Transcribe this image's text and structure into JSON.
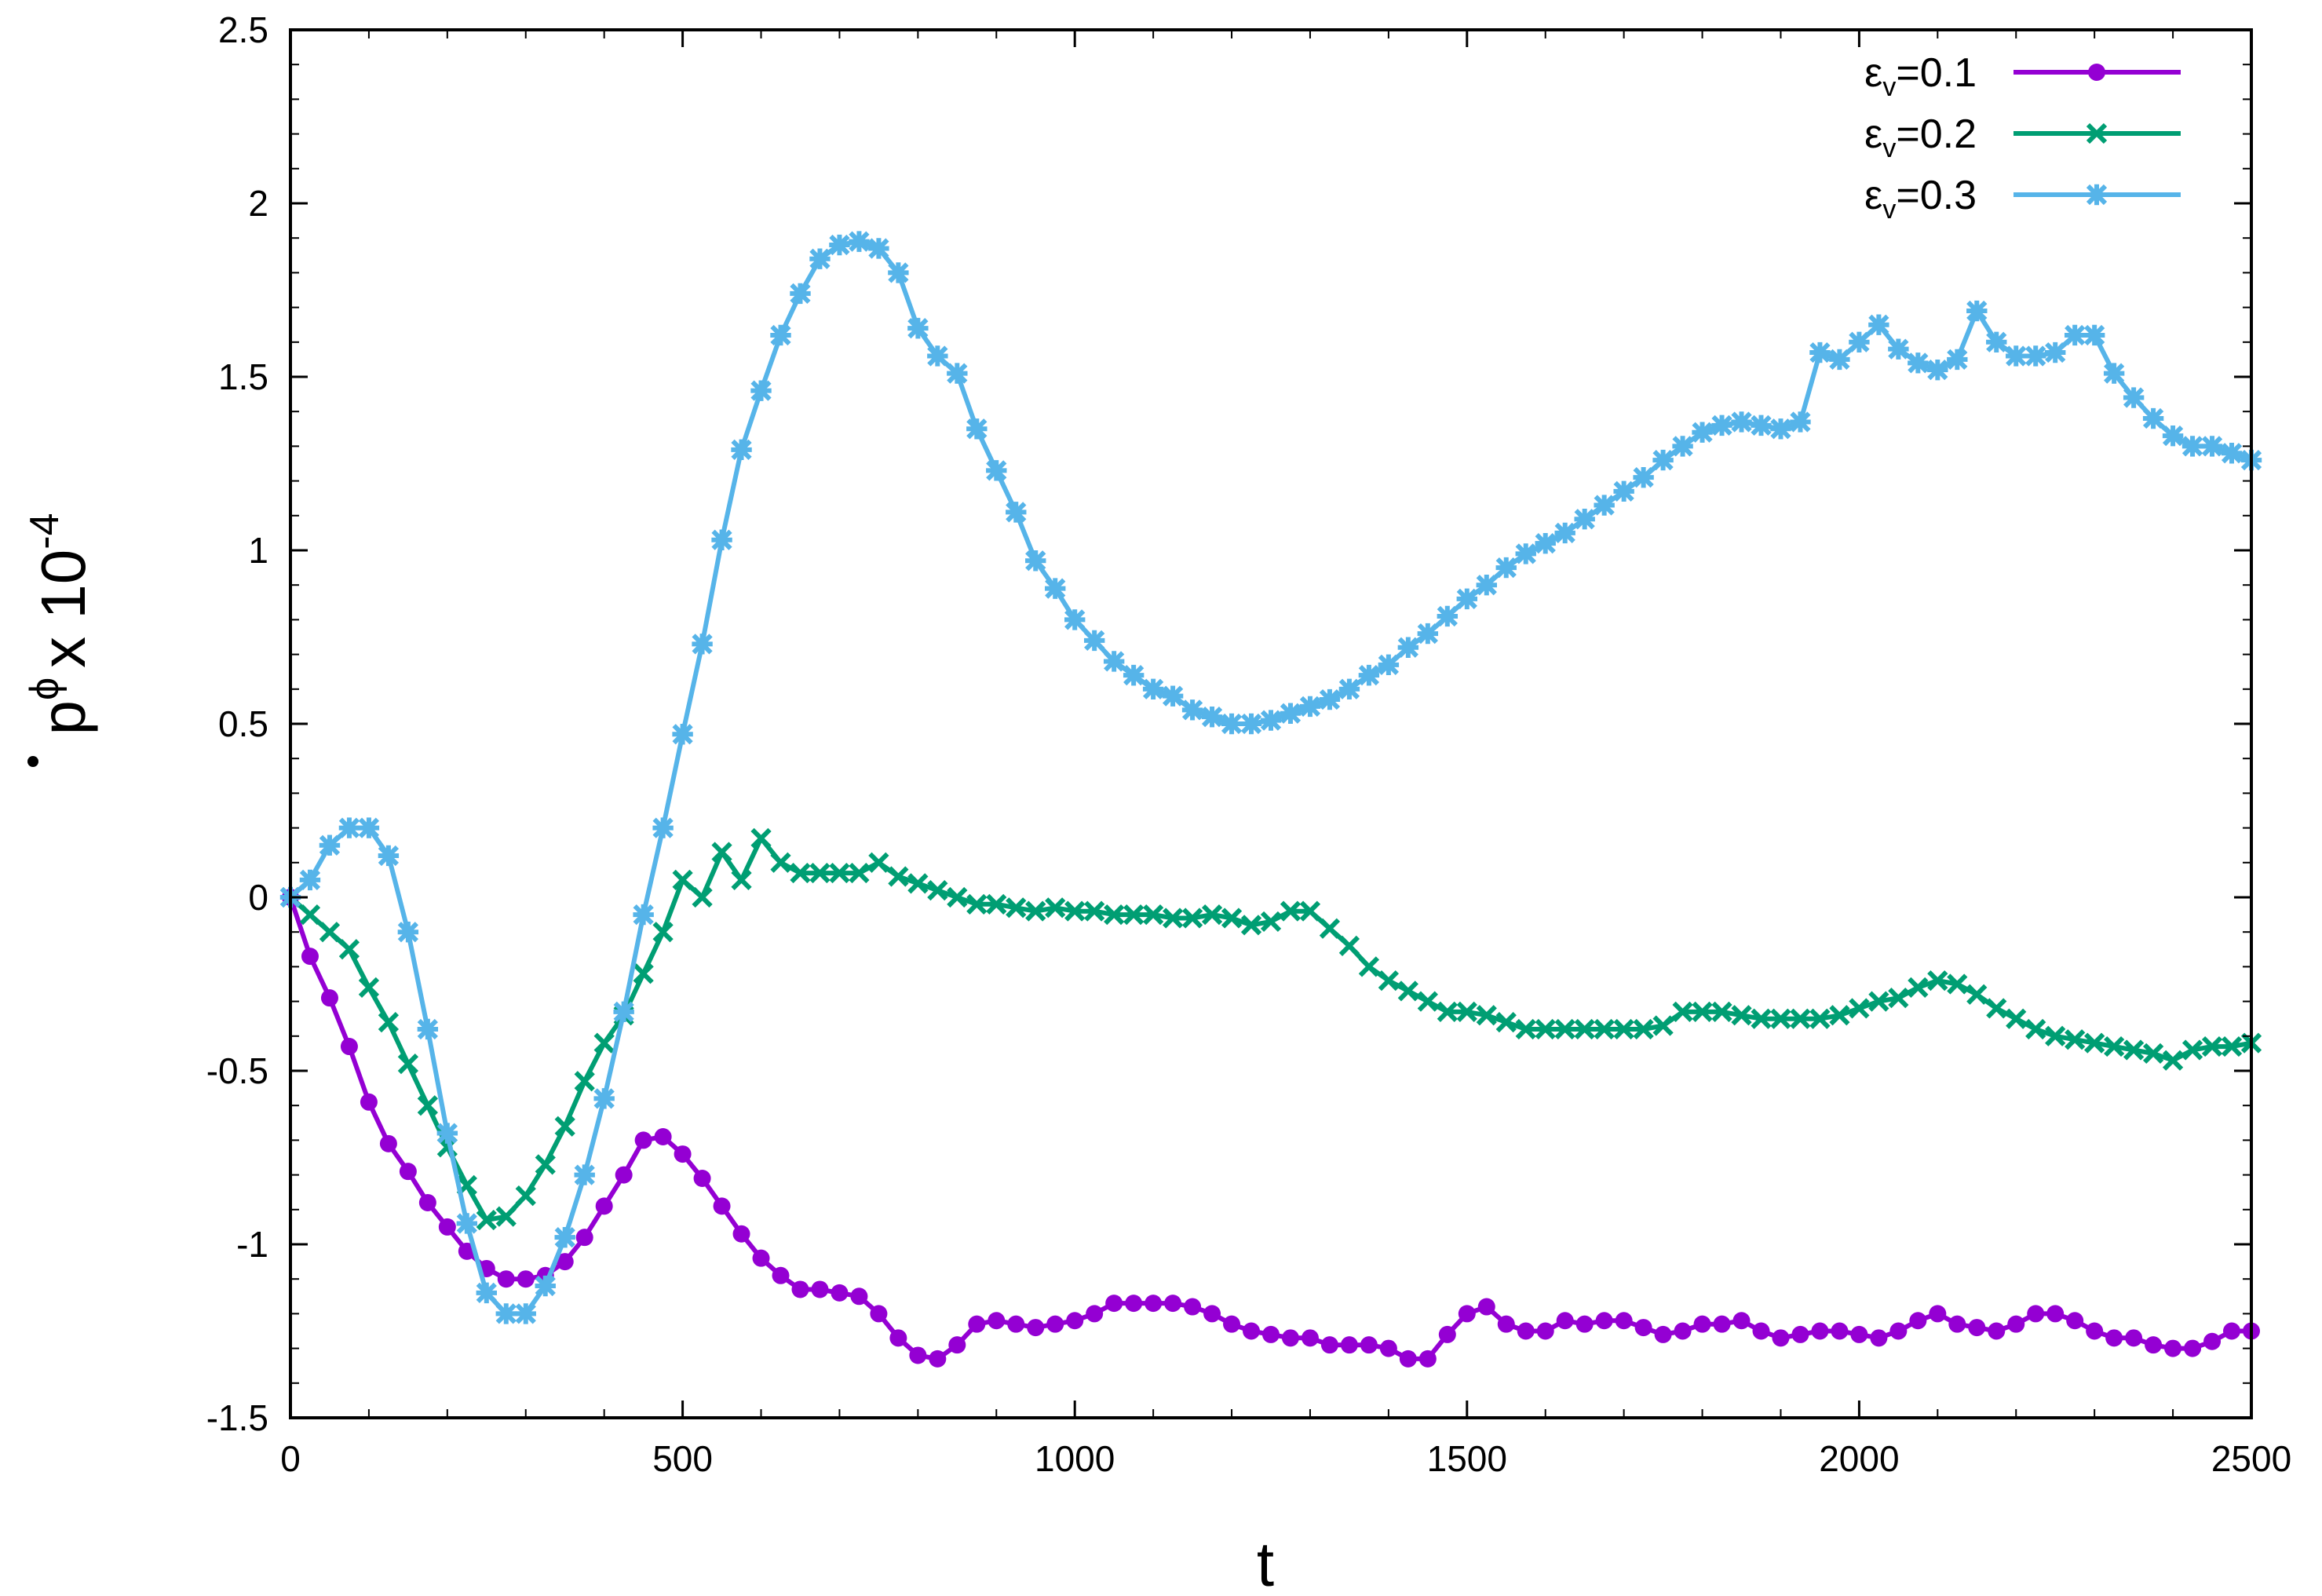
{
  "chart_data": {
    "type": "line",
    "xlabel": "t",
    "ylabel": {
      "base": "p",
      "sup": "ϕ",
      "mult": "x 10",
      "exp": "-4"
    },
    "xlim": [
      0,
      2500
    ],
    "ylim": [
      -1.5,
      2.5
    ],
    "xticks": [
      0,
      500,
      1000,
      1500,
      2000,
      2500
    ],
    "yticks": [
      -1.5,
      -1,
      -0.5,
      0,
      0.5,
      1,
      1.5,
      2,
      2.5
    ],
    "xtick_labels": [
      "0",
      "500",
      "1000",
      "1500",
      "2000",
      "2500"
    ],
    "ytick_labels": [
      "-1.5",
      "-1",
      "-0.5",
      "0",
      "0.5",
      "1",
      "1.5",
      "2",
      "2.5"
    ],
    "grid": false,
    "legend_position": "top-right",
    "series": [
      {
        "name": "εv=0.1",
        "legend": {
          "eps": "ε",
          "sub": "v",
          "rest": "=0.1"
        },
        "color": "#9400d3",
        "marker": "circle",
        "x": [
          0,
          25,
          50,
          75,
          100,
          125,
          150,
          175,
          200,
          225,
          250,
          275,
          300,
          325,
          350,
          375,
          400,
          425,
          450,
          475,
          500,
          525,
          550,
          575,
          600,
          625,
          650,
          675,
          700,
          725,
          750,
          775,
          800,
          825,
          850,
          875,
          900,
          925,
          950,
          975,
          1000,
          1025,
          1050,
          1075,
          1100,
          1125,
          1150,
          1175,
          1200,
          1225,
          1250,
          1275,
          1300,
          1325,
          1350,
          1375,
          1400,
          1425,
          1450,
          1475,
          1500,
          1525,
          1550,
          1575,
          1600,
          1625,
          1650,
          1675,
          1700,
          1725,
          1750,
          1775,
          1800,
          1825,
          1850,
          1875,
          1900,
          1925,
          1950,
          1975,
          2000,
          2025,
          2050,
          2075,
          2100,
          2125,
          2150,
          2175,
          2200,
          2225,
          2250,
          2275,
          2300,
          2325,
          2350,
          2375,
          2400,
          2425,
          2450,
          2475,
          2500
        ],
        "y": [
          0,
          -0.17,
          -0.29,
          -0.43,
          -0.59,
          -0.71,
          -0.79,
          -0.88,
          -0.95,
          -1.02,
          -1.07,
          -1.1,
          -1.1,
          -1.09,
          -1.05,
          -0.98,
          -0.89,
          -0.8,
          -0.7,
          -0.69,
          -0.74,
          -0.81,
          -0.89,
          -0.97,
          -1.04,
          -1.09,
          -1.13,
          -1.13,
          -1.14,
          -1.15,
          -1.2,
          -1.27,
          -1.32,
          -1.33,
          -1.29,
          -1.23,
          -1.22,
          -1.23,
          -1.24,
          -1.23,
          -1.22,
          -1.2,
          -1.17,
          -1.17,
          -1.17,
          -1.17,
          -1.18,
          -1.2,
          -1.23,
          -1.25,
          -1.26,
          -1.27,
          -1.27,
          -1.29,
          -1.29,
          -1.29,
          -1.3,
          -1.33,
          -1.33,
          -1.26,
          -1.2,
          -1.18,
          -1.23,
          -1.25,
          -1.25,
          -1.22,
          -1.23,
          -1.22,
          -1.22,
          -1.24,
          -1.26,
          -1.25,
          -1.23,
          -1.23,
          -1.22,
          -1.25,
          -1.27,
          -1.26,
          -1.25,
          -1.25,
          -1.26,
          -1.27,
          -1.25,
          -1.22,
          -1.2,
          -1.23,
          -1.24,
          -1.25,
          -1.23,
          -1.2,
          -1.2,
          -1.22,
          -1.25,
          -1.27,
          -1.27,
          -1.29,
          -1.3,
          -1.3,
          -1.28,
          -1.25,
          -1.25
        ]
      },
      {
        "name": "εv=0.2",
        "legend": {
          "eps": "ε",
          "sub": "v",
          "rest": "=0.2"
        },
        "color": "#009e73",
        "marker": "x",
        "x": [
          0,
          25,
          50,
          75,
          100,
          125,
          150,
          175,
          200,
          225,
          250,
          275,
          300,
          325,
          350,
          375,
          400,
          425,
          450,
          475,
          500,
          525,
          550,
          575,
          600,
          625,
          650,
          675,
          700,
          725,
          750,
          775,
          800,
          825,
          850,
          875,
          900,
          925,
          950,
          975,
          1000,
          1025,
          1050,
          1075,
          1100,
          1125,
          1150,
          1175,
          1200,
          1225,
          1250,
          1275,
          1300,
          1325,
          1350,
          1375,
          1400,
          1425,
          1450,
          1475,
          1500,
          1525,
          1550,
          1575,
          1600,
          1625,
          1650,
          1675,
          1700,
          1725,
          1750,
          1775,
          1800,
          1825,
          1850,
          1875,
          1900,
          1925,
          1950,
          1975,
          2000,
          2025,
          2050,
          2075,
          2100,
          2125,
          2150,
          2175,
          2200,
          2225,
          2250,
          2275,
          2300,
          2325,
          2350,
          2375,
          2400,
          2425,
          2450,
          2475,
          2500
        ],
        "y": [
          0,
          -0.05,
          -0.1,
          -0.15,
          -0.26,
          -0.36,
          -0.48,
          -0.6,
          -0.72,
          -0.83,
          -0.93,
          -0.92,
          -0.86,
          -0.77,
          -0.66,
          -0.53,
          -0.42,
          -0.34,
          -0.22,
          -0.1,
          0.05,
          0.0,
          0.13,
          0.05,
          0.17,
          0.1,
          0.07,
          0.07,
          0.07,
          0.07,
          0.1,
          0.06,
          0.04,
          0.02,
          0.0,
          -0.02,
          -0.02,
          -0.03,
          -0.04,
          -0.03,
          -0.04,
          -0.04,
          -0.05,
          -0.05,
          -0.05,
          -0.06,
          -0.06,
          -0.05,
          -0.06,
          -0.08,
          -0.07,
          -0.04,
          -0.04,
          -0.09,
          -0.14,
          -0.2,
          -0.24,
          -0.27,
          -0.3,
          -0.33,
          -0.33,
          -0.34,
          -0.36,
          -0.38,
          -0.38,
          -0.38,
          -0.38,
          -0.38,
          -0.38,
          -0.38,
          -0.37,
          -0.33,
          -0.33,
          -0.33,
          -0.34,
          -0.35,
          -0.35,
          -0.35,
          -0.35,
          -0.34,
          -0.32,
          -0.3,
          -0.29,
          -0.26,
          -0.24,
          -0.25,
          -0.28,
          -0.32,
          -0.35,
          -0.38,
          -0.4,
          -0.41,
          -0.42,
          -0.43,
          -0.44,
          -0.45,
          -0.47,
          -0.44,
          -0.43,
          -0.43,
          -0.42
        ]
      },
      {
        "name": "εv=0.3",
        "legend": {
          "eps": "ε",
          "sub": "v",
          "rest": "=0.3"
        },
        "color": "#56b4e9",
        "marker": "star",
        "x": [
          0,
          25,
          50,
          75,
          100,
          125,
          150,
          175,
          200,
          225,
          250,
          275,
          300,
          325,
          350,
          375,
          400,
          425,
          450,
          475,
          500,
          525,
          550,
          575,
          600,
          625,
          650,
          675,
          700,
          725,
          750,
          775,
          800,
          825,
          850,
          875,
          900,
          925,
          950,
          975,
          1000,
          1025,
          1050,
          1075,
          1100,
          1125,
          1150,
          1175,
          1200,
          1225,
          1250,
          1275,
          1300,
          1325,
          1350,
          1375,
          1400,
          1425,
          1450,
          1475,
          1500,
          1525,
          1550,
          1575,
          1600,
          1625,
          1650,
          1675,
          1700,
          1725,
          1750,
          1775,
          1800,
          1825,
          1850,
          1875,
          1900,
          1925,
          1950,
          1975,
          2000,
          2025,
          2050,
          2075,
          2100,
          2125,
          2150,
          2175,
          2200,
          2225,
          2250,
          2275,
          2300,
          2325,
          2350,
          2375,
          2400,
          2425,
          2450,
          2475,
          2500
        ],
        "y": [
          0,
          0.05,
          0.15,
          0.2,
          0.2,
          0.12,
          -0.1,
          -0.38,
          -0.68,
          -0.94,
          -1.14,
          -1.2,
          -1.2,
          -1.12,
          -0.98,
          -0.8,
          -0.58,
          -0.33,
          -0.05,
          0.2,
          0.47,
          0.73,
          1.03,
          1.29,
          1.46,
          1.62,
          1.74,
          1.84,
          1.88,
          1.89,
          1.87,
          1.8,
          1.64,
          1.56,
          1.51,
          1.35,
          1.23,
          1.11,
          0.97,
          0.89,
          0.8,
          0.74,
          0.68,
          0.64,
          0.6,
          0.58,
          0.54,
          0.52,
          0.5,
          0.5,
          0.51,
          0.53,
          0.55,
          0.57,
          0.6,
          0.64,
          0.67,
          0.72,
          0.76,
          0.81,
          0.86,
          0.9,
          0.95,
          0.99,
          1.02,
          1.05,
          1.09,
          1.13,
          1.17,
          1.21,
          1.26,
          1.3,
          1.34,
          1.36,
          1.37,
          1.36,
          1.35,
          1.37,
          1.57,
          1.55,
          1.6,
          1.65,
          1.58,
          1.54,
          1.52,
          1.55,
          1.69,
          1.6,
          1.56,
          1.56,
          1.57,
          1.62,
          1.62,
          1.51,
          1.44,
          1.38,
          1.33,
          1.3,
          1.3,
          1.28,
          1.26
        ]
      }
    ]
  }
}
